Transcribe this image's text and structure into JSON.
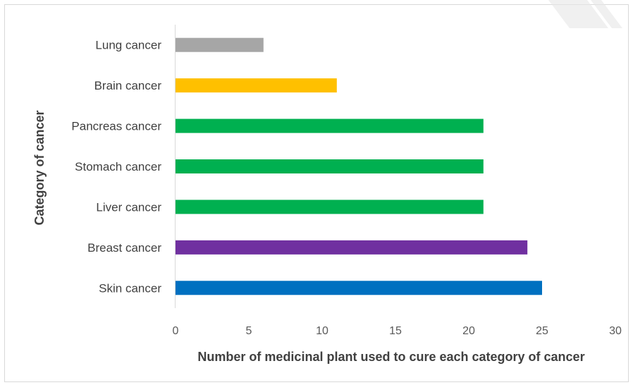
{
  "chart_data": {
    "type": "bar",
    "orientation": "horizontal",
    "categories": [
      "Lung cancer",
      "Brain cancer",
      "Pancreas cancer",
      "Stomach cancer",
      "Liver cancer",
      "Breast cancer",
      "Skin cancer"
    ],
    "values": [
      6,
      11,
      21,
      21,
      21,
      24,
      25
    ],
    "bar_colors": [
      "#a6a6a6",
      "#ffc000",
      "#00b050",
      "#00b050",
      "#00b050",
      "#7030a0",
      "#0070c0"
    ],
    "xlabel": "Number of medicinal plant used to cure each category of cancer",
    "ylabel": "Category of cancer",
    "xlim": [
      0,
      30
    ],
    "xticks": [
      0,
      5,
      10,
      15,
      20,
      25,
      30
    ],
    "grid": false,
    "legend": "none"
  }
}
